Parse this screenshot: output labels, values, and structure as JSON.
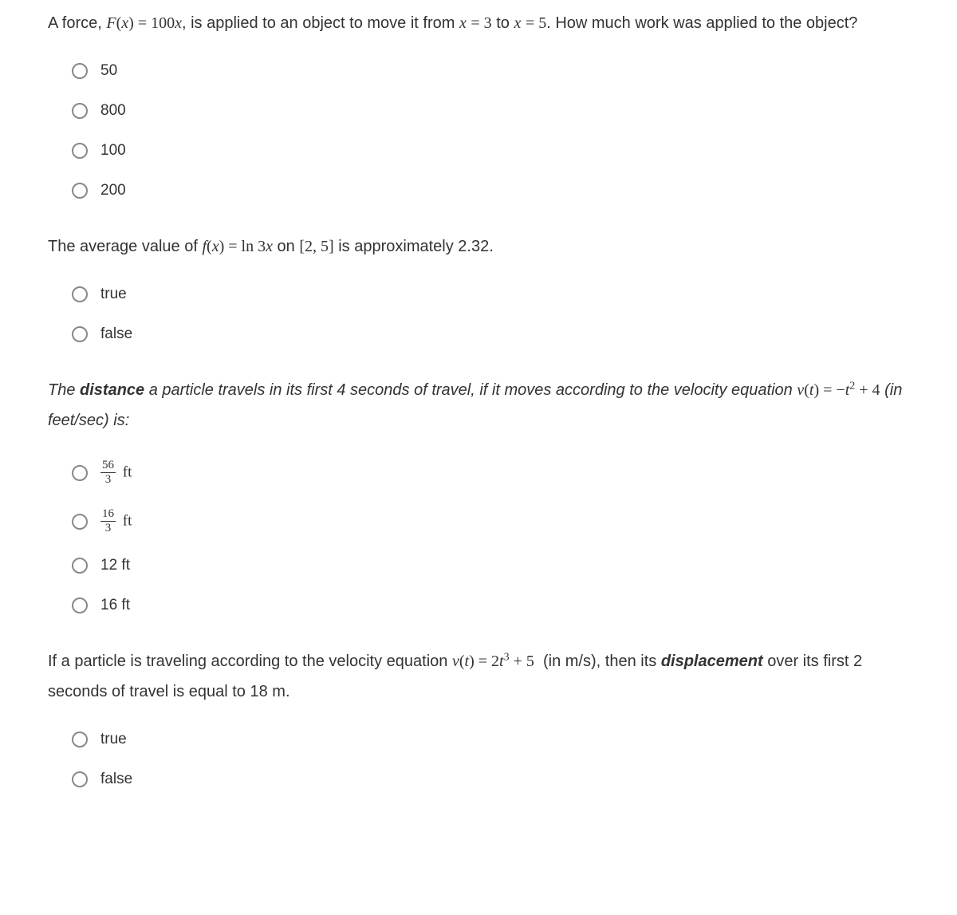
{
  "questions": [
    {
      "prompt_html": "A force, <span class='mathit'>F</span><span class='math'>(</span><span class='mathit'>x</span><span class='math'>) = 100</span><span class='mathit'>x</span>, is applied to an object to move it from <span class='mathit'>x</span> <span class='math'>= 3</span> to <span class='mathit'>x</span> <span class='math'>= 5</span>. How much work was applied to the object?",
      "prompt_class": "",
      "options": [
        {
          "label_html": "50"
        },
        {
          "label_html": "800"
        },
        {
          "label_html": "100"
        },
        {
          "label_html": "200"
        }
      ]
    },
    {
      "prompt_html": "The average value of <span class='mathit'>f</span><span class='math'>(</span><span class='mathit'>x</span><span class='math'>) = ln 3</span><span class='mathit'>x</span> on <span class='math'>[2, 5]</span> is approximately 2.32.",
      "prompt_class": "",
      "options": [
        {
          "label_html": "true"
        },
        {
          "label_html": "false"
        }
      ]
    },
    {
      "prompt_html": "<span class='italic'>The <span class='bolditalic'>distance</span> a particle travels in its first 4 seconds of travel, if it moves according to the velocity equation</span> <span class='mathit'>v</span><span class='math'>(</span><span class='mathit'>t</span><span class='math'>) = −</span><span class='mathit'>t</span><span class='math'><sup>2</sup> + 4</span> <span class='italic'>(in feet/sec) is:</span>",
      "prompt_class": "",
      "options": [
        {
          "label_html": "<span class='frac'><span class='num'>56</span><span class='den'>3</span></span><span class='math'> ft</span>"
        },
        {
          "label_html": "<span class='frac'><span class='num'>16</span><span class='den'>3</span></span><span class='math'> ft</span>"
        },
        {
          "label_html": "12 ft"
        },
        {
          "label_html": "16 ft"
        }
      ]
    },
    {
      "prompt_html": "If a particle is traveling according to the velocity equation <span class='mathit'>v</span><span class='math'>(</span><span class='mathit'>t</span><span class='math'>) = 2</span><span class='mathit'>t</span><span class='math'><sup>3</sup> + 5</span>&nbsp; (in m/s), then its <span class='bolditalic'>displacement</span> over its first 2 seconds of travel is equal to 18 m.",
      "prompt_class": "",
      "options": [
        {
          "label_html": "true"
        },
        {
          "label_html": "false"
        }
      ]
    }
  ],
  "style": {
    "text_color": "#333333",
    "radio_border": "#888888",
    "background": "#ffffff",
    "prompt_fontsize": 20,
    "option_fontsize": 19
  }
}
